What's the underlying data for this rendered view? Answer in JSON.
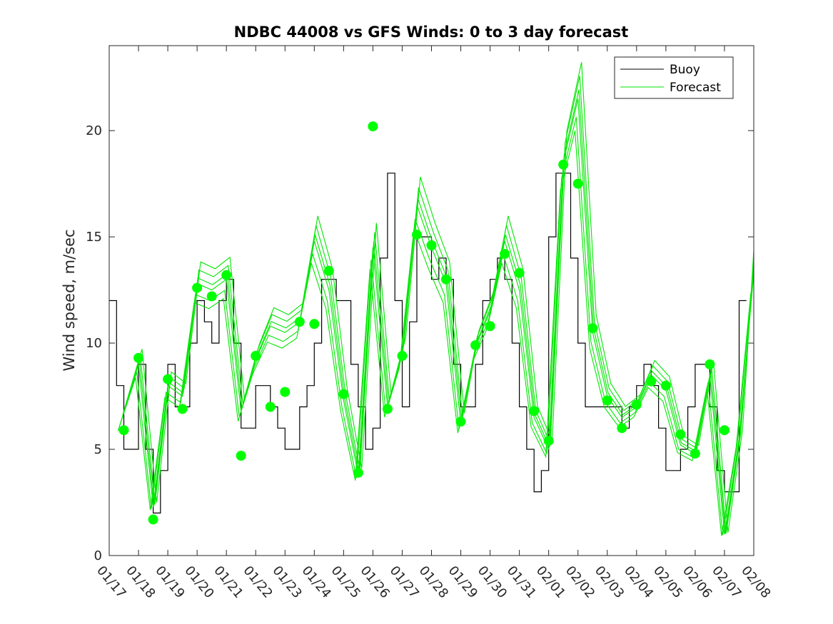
{
  "chart_data": {
    "type": "line",
    "title": "NDBC 44008 vs GFS Winds: 0 to 3 day forecast",
    "xlabel": "",
    "ylabel": "Wind speed, m/sec",
    "x_range_days": [
      0,
      22
    ],
    "ylim": [
      0,
      24
    ],
    "yticks": [
      0,
      5,
      10,
      15,
      20
    ],
    "xtick_labels": [
      "01/17",
      "01/18",
      "01/19",
      "01/20",
      "01/21",
      "01/22",
      "01/23",
      "01/24",
      "01/25",
      "01/26",
      "01/27",
      "01/28",
      "01/29",
      "01/30",
      "01/31",
      "02/01",
      "02/02",
      "02/03",
      "02/04",
      "02/05",
      "02/06",
      "02/07",
      "02/08"
    ],
    "legend": {
      "position": "top-right",
      "entries": [
        {
          "label": "Buoy",
          "color": "#000000"
        },
        {
          "label": "Forecast",
          "color": "#00e600"
        }
      ]
    },
    "colors": {
      "buoy": "#000000",
      "forecast": "#00e600",
      "marker": "#00ff00"
    },
    "buoy": {
      "name": "Buoy",
      "day": [
        0,
        0.25,
        0.5,
        0.75,
        1,
        1.25,
        1.5,
        1.75,
        2,
        2.25,
        2.5,
        2.75,
        3,
        3.25,
        3.5,
        3.75,
        4,
        4.25,
        4.5,
        4.75,
        5,
        5.25,
        5.5,
        5.75,
        6,
        6.25,
        6.5,
        6.75,
        7,
        7.25,
        7.5,
        7.75,
        8,
        8.25,
        8.5,
        8.75,
        9,
        9.25,
        9.5,
        9.75,
        10,
        10.25,
        10.5,
        10.75,
        11,
        11.25,
        11.5,
        11.75,
        12,
        12.25,
        12.5,
        12.75,
        13,
        13.25,
        13.5,
        13.75,
        14,
        14.25,
        14.5,
        14.75,
        15,
        15.25,
        15.5,
        15.75,
        16,
        16.25,
        16.5,
        16.75,
        17,
        17.25,
        17.5,
        17.75,
        18,
        18.25,
        18.5,
        18.75,
        19,
        19.25,
        19.5,
        19.75,
        20,
        20.25,
        20.5,
        20.75,
        21,
        21.25,
        21.5,
        21.75,
        22
      ],
      "speed": [
        12,
        8,
        5,
        5,
        9,
        5,
        2,
        4,
        9,
        7,
        7,
        10,
        12,
        11,
        10,
        12,
        13,
        10,
        6,
        6,
        8,
        8,
        7,
        6,
        5,
        5,
        7,
        8,
        10,
        13,
        13,
        12,
        12,
        9,
        7,
        5,
        6,
        14,
        18,
        12,
        7,
        11,
        15,
        15,
        13,
        14,
        13,
        9,
        7,
        7,
        9,
        12,
        13,
        14,
        13,
        10,
        7,
        5,
        3,
        4,
        15,
        18,
        18,
        14,
        10,
        7,
        7,
        7,
        7,
        7,
        6,
        7,
        8,
        9,
        8,
        6,
        4,
        4,
        5,
        7,
        9,
        9,
        7,
        4,
        3,
        3,
        12
      ]
    },
    "forecast": {
      "name": "Forecast",
      "day": [
        0.4,
        1,
        1.5,
        2,
        2.5,
        3,
        3.5,
        4,
        4.5,
        5,
        5.5,
        6,
        6.5,
        7,
        7.5,
        8,
        8.5,
        9,
        9.5,
        10,
        10.5,
        11,
        11.5,
        12,
        12.5,
        13,
        13.5,
        14,
        14.5,
        15,
        15.5,
        16,
        16.5,
        17,
        17.5,
        18,
        18.5,
        19,
        19.5,
        20,
        20.5,
        21,
        21.5,
        22
      ],
      "speed": [
        6.3,
        9.0,
        2.3,
        8.0,
        7.5,
        12.8,
        12.5,
        13.0,
        6.8,
        9.2,
        10.8,
        10.5,
        11.0,
        14.8,
        12.5,
        7.3,
        3.8,
        14.5,
        7.0,
        9.5,
        16.5,
        14.5,
        12.8,
        6.2,
        9.8,
        11.5,
        14.8,
        12.5,
        6.5,
        5.0,
        18.5,
        21.5,
        10.5,
        7.5,
        6.5,
        7.0,
        8.5,
        7.8,
        5.2,
        4.8,
        8.5,
        1.0,
        5.5,
        13.3
      ]
    },
    "markers": {
      "name": "Forecast daily",
      "day": [
        0.5,
        1,
        1.5,
        2,
        2.5,
        3,
        3.5,
        4,
        4.5,
        5,
        5.5,
        6,
        6.5,
        7,
        7.5,
        8,
        8.5,
        9,
        9.5,
        10,
        10.5,
        11,
        11.5,
        12,
        12.5,
        13,
        13.5,
        14,
        14.5,
        15,
        15.5,
        16,
        16.5,
        17,
        17.5,
        18,
        18.5,
        19,
        19.5,
        20,
        20.5,
        21
      ],
      "speed": [
        5.9,
        9.3,
        1.7,
        8.3,
        6.9,
        12.6,
        12.2,
        13.2,
        4.7,
        9.4,
        7.0,
        7.7,
        11.0,
        10.9,
        13.4,
        7.6,
        3.9,
        20.2,
        6.9,
        9.4,
        15.1,
        14.6,
        13.0,
        6.3,
        9.9,
        10.8,
        14.2,
        13.3,
        6.8,
        5.4,
        18.4,
        17.5,
        10.7,
        7.3,
        6.0,
        7.1,
        8.2,
        8.0,
        5.7,
        4.8,
        9.0,
        5.9
      ]
    }
  }
}
